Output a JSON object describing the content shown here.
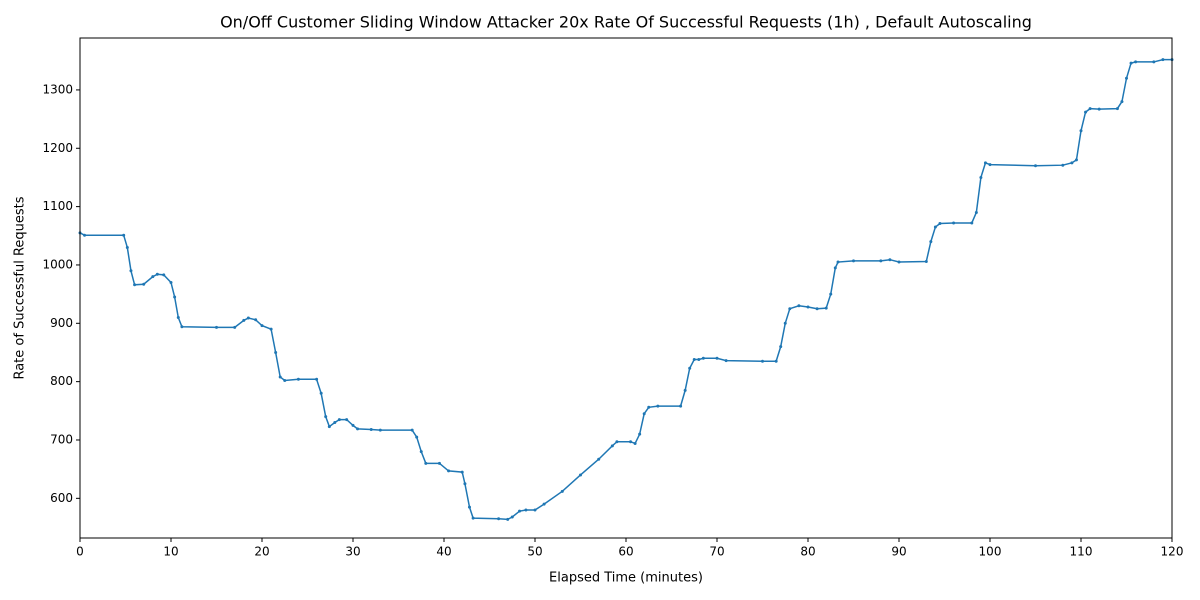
{
  "chart_data": {
    "type": "line",
    "title": "On/Off Customer Sliding Window Attacker 20x Rate Of Successful Requests (1h) , Default Autoscaling",
    "x_label": "Elapsed Time (minutes)",
    "y_label": "Rate of Successful Requests",
    "xlim": [
      0,
      120
    ],
    "ylim": [
      532,
      1389
    ],
    "xticks": [
      0,
      10,
      20,
      30,
      40,
      50,
      60,
      70,
      80,
      90,
      100,
      110,
      120
    ],
    "yticks": [
      600,
      700,
      800,
      900,
      1000,
      1100,
      1200,
      1300
    ],
    "grid": false,
    "x": [
      0,
      0.5,
      4.8,
      5.2,
      5.6,
      6,
      7,
      8,
      8.5,
      9.2,
      10,
      10.4,
      10.8,
      11.2,
      15,
      17,
      18,
      18.5,
      19.3,
      20,
      21,
      21.5,
      22,
      22.5,
      24,
      26,
      26.5,
      27,
      27.4,
      28,
      28.5,
      29.3,
      30,
      30.5,
      32,
      33,
      36.5,
      37,
      37.5,
      38,
      39.5,
      40.5,
      42,
      42.3,
      42.8,
      43.2,
      46,
      47,
      47.5,
      48.3,
      49,
      50,
      51,
      53,
      55,
      57,
      58.5,
      59,
      60.5,
      61,
      61.5,
      62,
      62.5,
      63.5,
      66,
      66.5,
      67,
      67.5,
      68,
      68.5,
      70,
      71,
      75,
      76.5,
      77,
      77.5,
      78,
      79,
      80,
      81,
      82,
      82.5,
      83,
      83.3,
      85,
      88,
      89,
      90,
      93,
      93.5,
      94,
      94.5,
      96,
      98,
      98.5,
      99,
      99.5,
      100,
      105,
      108,
      109,
      109.5,
      110,
      110.5,
      111,
      112,
      114,
      114.5,
      115,
      115.5,
      116,
      118,
      119,
      120
    ],
    "series": [
      {
        "name": "Rate of Successful Requests",
        "color": "#1f77b4",
        "values": [
          1055,
          1051,
          1051,
          1030,
          990,
          966,
          967,
          980,
          984,
          983,
          970,
          945,
          910,
          894,
          893,
          893,
          905,
          909,
          906,
          896,
          890,
          850,
          808,
          802,
          804,
          804,
          780,
          740,
          723,
          730,
          735,
          735,
          725,
          719,
          718,
          717,
          717,
          705,
          680,
          660,
          660,
          647,
          645,
          625,
          585,
          566,
          565,
          564,
          568,
          578,
          580,
          580,
          590,
          612,
          640,
          667,
          690,
          697,
          697,
          694,
          710,
          745,
          756,
          758,
          758,
          785,
          823,
          838,
          838,
          840,
          840,
          836,
          835,
          835,
          860,
          900,
          925,
          930,
          928,
          925,
          926,
          950,
          995,
          1005,
          1007,
          1007,
          1009,
          1005,
          1006,
          1040,
          1065,
          1071,
          1072,
          1072,
          1090,
          1150,
          1175,
          1172,
          1170,
          1171,
          1175,
          1180,
          1230,
          1262,
          1268,
          1267,
          1268,
          1280,
          1320,
          1346,
          1348,
          1348,
          1352,
          1352
        ]
      }
    ]
  }
}
